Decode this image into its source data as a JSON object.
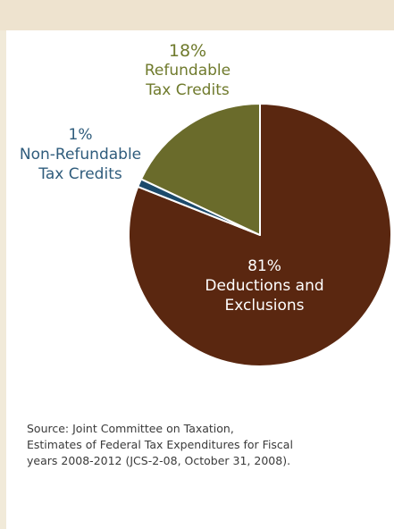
{
  "colors": {
    "header_band": "#eee3cf",
    "left_rule": "#f1ead9",
    "deductions": "#5a2710",
    "refundable": "#6a6b2b",
    "nonrefundable": "#1c4a6b",
    "refundable_label": "#6f7a2c",
    "nonrefundable_label": "#2f5c7c",
    "slice_border": "#ffffff"
  },
  "chart_data": {
    "type": "pie",
    "title": "",
    "slices": [
      {
        "key": "deductions",
        "percent_label": "81%",
        "name_lines": [
          "Deductions and",
          "Exclusions"
        ],
        "value": 81,
        "color": "#5a2710"
      },
      {
        "key": "nonrefundable",
        "percent_label": "1%",
        "name_lines": [
          "Non-Refundable",
          "Tax Credits"
        ],
        "value": 1,
        "color": "#1c4a6b"
      },
      {
        "key": "refundable",
        "percent_label": "18%",
        "name_lines": [
          "Refundable",
          "Tax Credits"
        ],
        "value": 18,
        "color": "#6a6b2b"
      }
    ]
  },
  "source": {
    "lines": [
      "Source:  Joint Committee on Taxation,",
      "Estimates of Federal Tax Expenditures for Fiscal",
      "years 2008-2012 (JCS-2-08, October 31, 2008)."
    ]
  }
}
